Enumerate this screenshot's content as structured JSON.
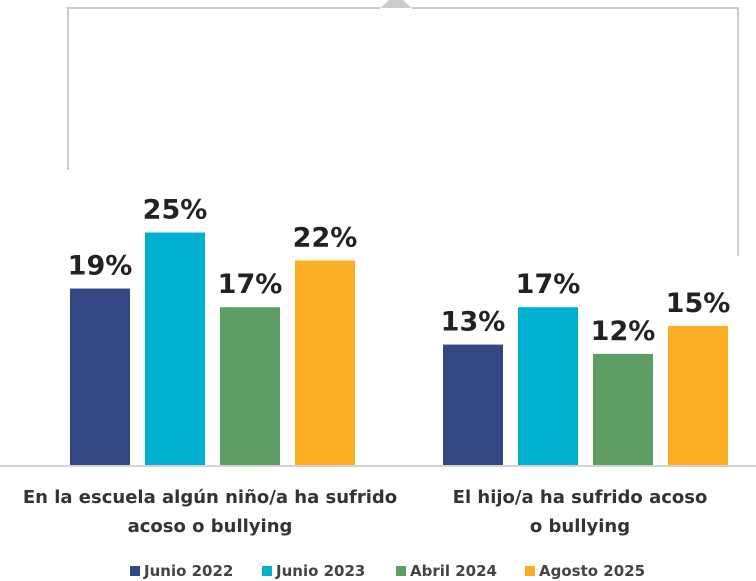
{
  "chart_data": {
    "type": "bar",
    "categories": [
      [
        "En la escuela algún niño/a ha sufrido",
        "acoso o bullying"
      ],
      [
        "El hijo/a ha sufrido acoso",
        "o bullying"
      ]
    ],
    "series": [
      {
        "name": "Junio 2022",
        "color": "#334785",
        "values": [
          19,
          13
        ],
        "labels": [
          "19%",
          "13%"
        ]
      },
      {
        "name": "Junio 2023",
        "color": "#00b0d0",
        "values": [
          25,
          17
        ],
        "labels": [
          "25%",
          "17%"
        ]
      },
      {
        "name": "Abril 2024",
        "color": "#5e9e64",
        "values": [
          17,
          12
        ],
        "labels": [
          "17%",
          "12%"
        ]
      },
      {
        "name": "Agosto 2025",
        "color": "#fbae24",
        "values": [
          22,
          15
        ],
        "labels": [
          "22%",
          "15%"
        ]
      }
    ],
    "ylim": [
      0,
      40
    ],
    "grid": false,
    "legend_position": "bottom"
  }
}
